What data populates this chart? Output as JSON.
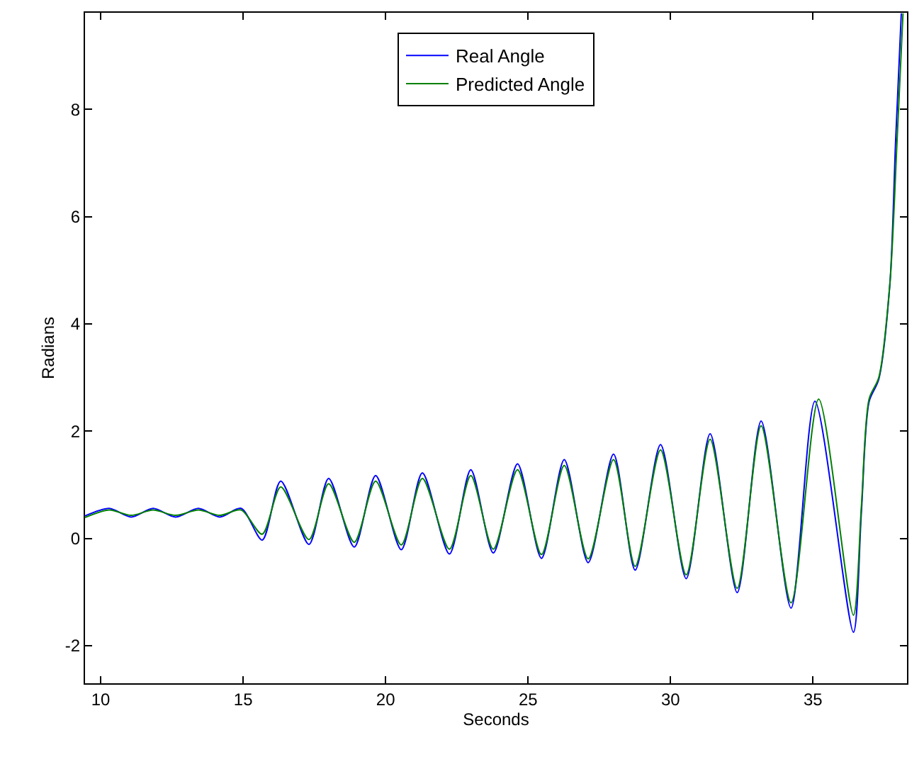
{
  "chart_data": {
    "type": "line",
    "xlabel": "Seconds",
    "ylabel": "Radians",
    "xlim": [
      9.45,
      38.3
    ],
    "ylim": [
      -2.7,
      9.8
    ],
    "xticks": [
      10,
      15,
      20,
      25,
      30,
      35
    ],
    "yticks": [
      -2,
      0,
      2,
      4,
      6,
      8
    ],
    "legend": "top",
    "marker": "none",
    "line_style": "solid",
    "series": [
      {
        "name": "Real Angle",
        "color": "#0000ff",
        "x": [
          9.45,
          10.3,
          11.07,
          11.84,
          12.63,
          13.43,
          14.18,
          14.93,
          15.67,
          16.32,
          17.31,
          18.0,
          18.9,
          19.65,
          20.55,
          21.29,
          22.24,
          22.99,
          23.78,
          24.63,
          25.47,
          26.27,
          27.11,
          28.0,
          28.76,
          29.65,
          30.55,
          31.39,
          32.34,
          33.18,
          34.23,
          35.07,
          36.42,
          36.7,
          36.97,
          37.31,
          37.7,
          37.9,
          38.1
        ],
        "values": [
          0.42,
          0.56,
          0.4,
          0.56,
          0.4,
          0.56,
          0.4,
          0.56,
          -0.03,
          1.07,
          -0.11,
          1.12,
          -0.16,
          1.17,
          -0.21,
          1.22,
          -0.29,
          1.28,
          -0.27,
          1.39,
          -0.37,
          1.47,
          -0.45,
          1.57,
          -0.59,
          1.75,
          -0.75,
          1.95,
          -1.01,
          2.19,
          -1.3,
          2.56,
          -1.75,
          0.5,
          2.55,
          2.97,
          4.75,
          7.4,
          9.79
        ]
      },
      {
        "name": "Predicted Angle",
        "color": "#008000",
        "x": [
          9.45,
          10.3,
          11.07,
          11.84,
          12.63,
          13.43,
          14.18,
          14.93,
          15.67,
          16.32,
          17.31,
          18.0,
          18.9,
          19.65,
          20.55,
          21.29,
          22.24,
          22.99,
          23.78,
          24.63,
          25.47,
          26.27,
          27.11,
          28.0,
          28.76,
          29.65,
          30.55,
          31.39,
          32.34,
          33.18,
          34.23,
          35.2,
          36.42,
          36.7,
          36.97,
          37.31,
          37.7,
          37.95,
          38.16
        ],
        "values": [
          0.39,
          0.53,
          0.43,
          0.53,
          0.43,
          0.53,
          0.43,
          0.53,
          0.08,
          0.96,
          -0.02,
          1.02,
          -0.07,
          1.07,
          -0.12,
          1.12,
          -0.2,
          1.17,
          -0.2,
          1.28,
          -0.3,
          1.36,
          -0.38,
          1.47,
          -0.52,
          1.65,
          -0.68,
          1.85,
          -0.93,
          2.1,
          -1.2,
          2.6,
          -1.43,
          0.6,
          2.6,
          3.0,
          4.75,
          7.4,
          9.79
        ]
      }
    ]
  }
}
